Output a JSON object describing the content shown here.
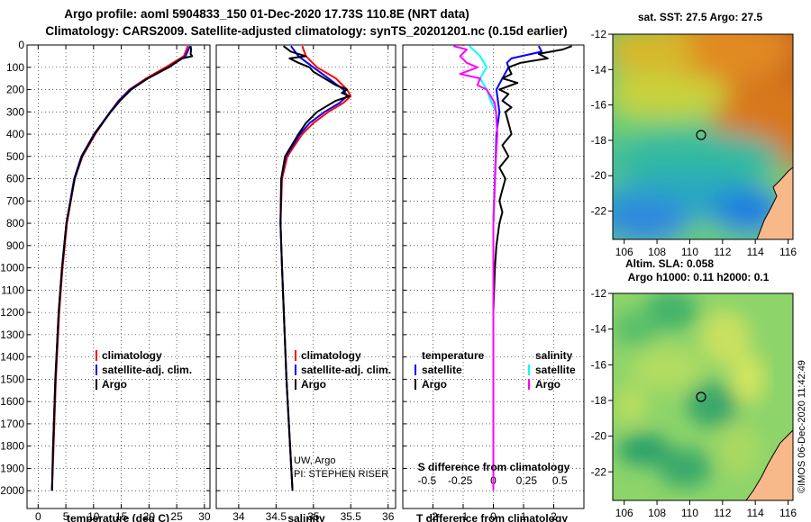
{
  "header": {
    "line1": "Argo profile: aoml 5904833_150 01-Dec-2020 17.73S 110.8E (NRT data)",
    "line2": "Climatology: CARS2009. Satellite-adjusted climatology: synTS_20201201.nc (0.15d earlier)"
  },
  "credit": {
    "line1": "UW, Argo",
    "line2": "PI: STEPHEN RISER",
    "imos": "©IMOS 06-Dec-2020 11:42:49"
  },
  "colors": {
    "climatology": "#ff0000",
    "satellite": "#0000ff",
    "argo": "#000000",
    "sat_salinity": "#00ffff",
    "argo_salinity": "#ff00ff",
    "land": "#f7b98a"
  },
  "chart_data": [
    {
      "type": "line",
      "id": "temperature",
      "xlabel": "temperature (deg C)",
      "ylabel": "depth",
      "xlim": [
        -2,
        31
      ],
      "ylim": [
        2080,
        0
      ],
      "xticks": [
        0,
        5,
        10,
        15,
        20,
        25,
        30
      ],
      "yticks": [
        0,
        100,
        200,
        300,
        400,
        500,
        600,
        700,
        800,
        900,
        1000,
        1100,
        1200,
        1300,
        1400,
        1500,
        1600,
        1700,
        1800,
        1900,
        2000
      ],
      "legend": [
        "climatology",
        "satellite-adj. clim.",
        "Argo"
      ],
      "series": [
        {
          "name": "climatology",
          "depth": [
            5,
            50,
            100,
            150,
            200,
            250,
            300,
            400,
            500,
            600,
            800,
            1000,
            1200,
            1500,
            1800,
            2000
          ],
          "values": [
            27.0,
            26.3,
            23.0,
            19.5,
            16.5,
            14.5,
            13.0,
            10.3,
            8.0,
            6.6,
            5.2,
            4.4,
            3.8,
            3.2,
            2.8,
            2.5
          ]
        },
        {
          "name": "satellite-adj. clim.",
          "depth": [
            5,
            50,
            100,
            150,
            200,
            250,
            300,
            400,
            500,
            600,
            800,
            1000,
            1200,
            1500,
            1800,
            2000
          ],
          "values": [
            27.4,
            26.6,
            23.6,
            19.8,
            16.6,
            14.6,
            13.0,
            10.1,
            7.8,
            6.5,
            5.1,
            4.3,
            3.7,
            3.1,
            2.7,
            2.5
          ]
        },
        {
          "name": "Argo",
          "depth": [
            5,
            20,
            40,
            50,
            60,
            75,
            100,
            150,
            200,
            250,
            300,
            400,
            500,
            600,
            800,
            1000,
            1200,
            1500,
            1800,
            2000
          ],
          "values": [
            27.5,
            27.6,
            27.5,
            27.8,
            26.0,
            25.0,
            23.5,
            19.8,
            16.8,
            14.8,
            13.1,
            10.2,
            7.9,
            6.6,
            5.1,
            4.3,
            3.7,
            3.1,
            2.7,
            2.5
          ]
        }
      ]
    },
    {
      "type": "line",
      "id": "salinity",
      "xlabel": "salinity",
      "xlim": [
        33.7,
        36.1
      ],
      "ylim": [
        2080,
        0
      ],
      "xticks": [
        34,
        34.5,
        35,
        35.5,
        36
      ],
      "legend": [
        "climatology",
        "satellite-adj. clim.",
        "Argo"
      ],
      "series": [
        {
          "name": "climatology",
          "depth": [
            5,
            50,
            100,
            150,
            200,
            230,
            260,
            300,
            350,
            400,
            500,
            600,
            800,
            1000,
            1500,
            2000
          ],
          "values": [
            34.85,
            34.9,
            35.05,
            35.3,
            35.45,
            35.5,
            35.4,
            35.2,
            35.0,
            34.85,
            34.65,
            34.58,
            34.56,
            34.58,
            34.64,
            34.72
          ]
        },
        {
          "name": "satellite-adj. clim.",
          "depth": [
            5,
            50,
            100,
            150,
            200,
            230,
            260,
            300,
            350,
            400,
            500,
            600,
            800,
            1000,
            1500,
            2000
          ],
          "values": [
            34.7,
            34.8,
            35.0,
            35.2,
            35.4,
            35.45,
            35.35,
            35.15,
            34.95,
            34.82,
            34.63,
            34.57,
            34.56,
            34.58,
            34.64,
            34.72
          ]
        },
        {
          "name": "Argo",
          "depth": [
            5,
            30,
            50,
            60,
            80,
            100,
            120,
            150,
            180,
            200,
            215,
            230,
            250,
            280,
            300,
            350,
            400,
            500,
            600,
            800,
            1000,
            1500,
            2000
          ],
          "values": [
            34.6,
            34.7,
            34.9,
            34.68,
            34.8,
            34.95,
            35.0,
            35.15,
            35.3,
            35.45,
            35.38,
            35.48,
            35.3,
            35.15,
            35.05,
            34.9,
            34.8,
            34.62,
            34.57,
            34.56,
            34.58,
            34.64,
            34.72
          ]
        }
      ]
    },
    {
      "type": "line",
      "id": "difference",
      "xlabel": "T difference from climatology",
      "xlabel_top": "S difference from climatology",
      "xlim": [
        -3,
        3
      ],
      "ylim": [
        2080,
        0
      ],
      "xticks": [
        -2,
        -1,
        0,
        1,
        2
      ],
      "xticks_salinity": [
        -0.5,
        -0.25,
        0,
        0.25,
        0.5
      ],
      "legend_titles": [
        "temperature",
        "salinity"
      ],
      "legend": [
        "satellite",
        "Argo",
        "satellite",
        "Argo"
      ],
      "series": [
        {
          "name": "T satellite",
          "depth": [
            5,
            30,
            60,
            80,
            100,
            150,
            200,
            300,
            400,
            600,
            800,
            1000,
            1500,
            2000
          ],
          "values": [
            1.5,
            1.6,
            0.6,
            0.45,
            0.5,
            0.3,
            0.1,
            0.2,
            0.1,
            0.05,
            0.0,
            0.0,
            0.0,
            0.0
          ]
        },
        {
          "name": "T Argo",
          "depth": [
            5,
            20,
            40,
            60,
            80,
            100,
            130,
            150,
            170,
            200,
            220,
            250,
            280,
            300,
            350,
            400,
            450,
            500,
            550,
            600,
            650,
            700,
            750,
            800,
            900,
            1000,
            1200,
            1500,
            1800,
            2000
          ],
          "values": [
            2.6,
            2.3,
            1.5,
            1.8,
            0.9,
            0.5,
            0.6,
            0.3,
            0.8,
            0.2,
            0.5,
            0.3,
            0.6,
            0.4,
            0.5,
            0.6,
            0.3,
            0.5,
            0.2,
            0.4,
            0.3,
            0.2,
            0.3,
            0.2,
            0.1,
            0.05,
            0.0,
            0.0,
            0.0,
            0.0
          ]
        },
        {
          "name": "S satellite",
          "depth": [
            5,
            50,
            100,
            150,
            200,
            250,
            300,
            400,
            500,
            800,
            1200,
            1500,
            2000
          ],
          "values": [
            -0.18,
            -0.1,
            -0.05,
            -0.1,
            -0.05,
            -0.02,
            0.02,
            0.03,
            0.02,
            0.0,
            0.0,
            0.0,
            0.0
          ]
        },
        {
          "name": "S Argo",
          "depth": [
            5,
            20,
            50,
            80,
            100,
            130,
            150,
            180,
            200,
            230,
            260,
            300,
            400,
            500,
            800,
            1200,
            1500,
            2000
          ],
          "values": [
            -0.3,
            -0.2,
            -0.25,
            -0.2,
            -0.12,
            -0.25,
            -0.1,
            -0.12,
            -0.05,
            -0.02,
            0.01,
            0.02,
            0.03,
            0.02,
            0.0,
            0.0,
            0.0,
            0.0
          ]
        }
      ]
    },
    {
      "type": "heatmap",
      "id": "sst_map",
      "title": "sat. SST: 27.5 Argo: 27.5",
      "xlim": [
        105.3,
        116.3
      ],
      "ylim": [
        -23.6,
        -12
      ],
      "xticks": [
        106,
        108,
        110,
        112,
        114,
        116
      ],
      "yticks": [
        -12,
        -14,
        -16,
        -18,
        -20,
        -22
      ],
      "marker": {
        "lon": 110.8,
        "lat": -17.73
      }
    },
    {
      "type": "heatmap",
      "id": "sla_map",
      "title_line1": "Altim. SLA: 0.058",
      "title_line2": "Argo h1000: 0.11 h2000: 0.1",
      "xlim": [
        105.3,
        116.3
      ],
      "ylim": [
        -23.6,
        -12
      ],
      "xticks": [
        106,
        108,
        110,
        112,
        114,
        116
      ],
      "yticks": [
        -12,
        -14,
        -16,
        -18,
        -20,
        -22
      ],
      "marker": {
        "lon": 110.8,
        "lat": -17.73
      }
    }
  ]
}
